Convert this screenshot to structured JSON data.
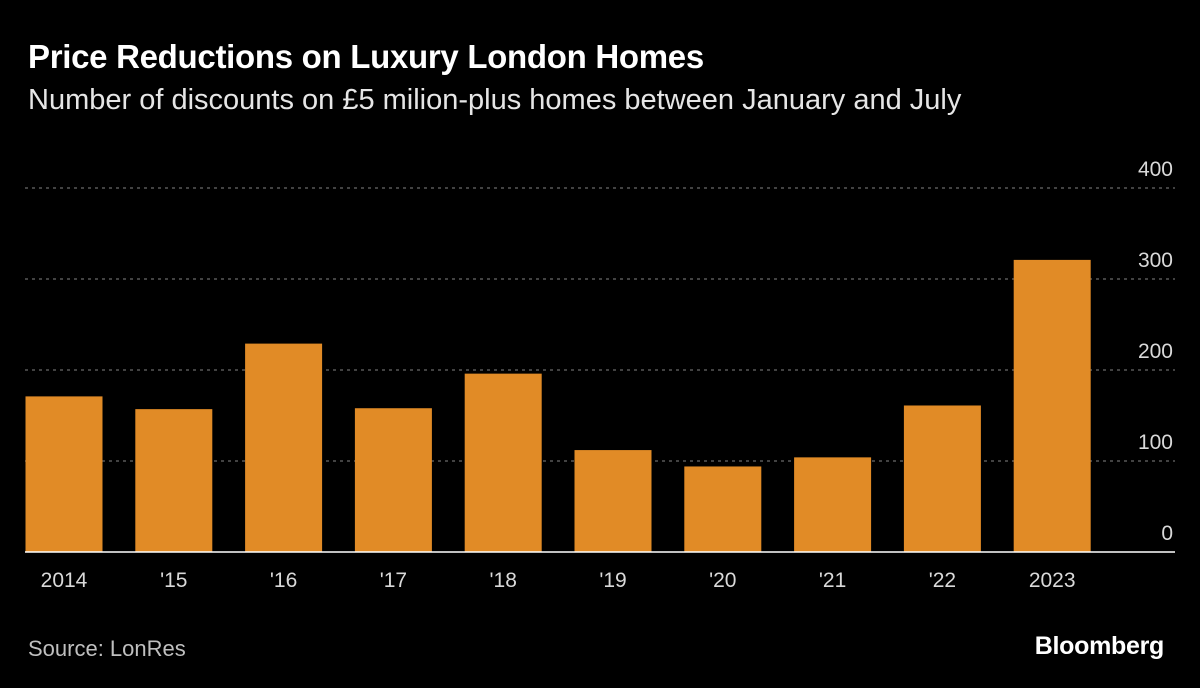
{
  "chart_data": {
    "type": "bar",
    "title": "Price Reductions on Luxury London Homes",
    "subtitle": "Number of discounts on £5 milion-plus homes between January and July",
    "categories": [
      "2014",
      "'15",
      "'16",
      "'17",
      "'18",
      "'19",
      "'20",
      "'21",
      "'22",
      "2023"
    ],
    "values": [
      171,
      157,
      229,
      158,
      196,
      112,
      94,
      104,
      161,
      321
    ],
    "ylim": [
      0,
      400
    ],
    "yticks": [
      "0",
      "100",
      "200",
      "300",
      "400"
    ],
    "ytick_values": [
      0,
      100,
      200,
      300,
      400
    ],
    "grid": true,
    "y_axis_position": "right",
    "bar_color": "#e18b26",
    "grid_color": "#6a6a6a",
    "source": "Source: LonRes",
    "brand": "Bloomberg"
  }
}
